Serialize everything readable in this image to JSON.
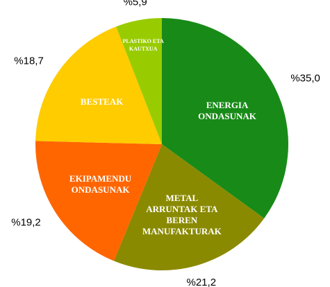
{
  "chart_data": {
    "type": "pie",
    "categories": [
      "ENERGIA ONDASUNAK",
      "METAL ARRUNTAK ETA BEREN MANUFAKTURAK",
      "EKIPAMENDU ONDASUNAK",
      "BESTEAK",
      "PLASTIKO ETA KAUTXUA"
    ],
    "values": [
      35.0,
      21.2,
      19.2,
      18.7,
      5.9
    ],
    "value_labels": [
      "%35,0",
      "%21,2",
      "%19,2",
      "%18,7",
      "%5,9"
    ],
    "colors": [
      "#188a18",
      "#8a8a00",
      "#ff6600",
      "#ffcc00",
      "#99cc00"
    ]
  }
}
